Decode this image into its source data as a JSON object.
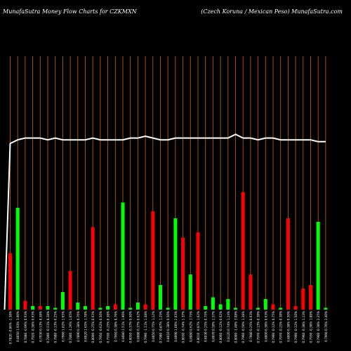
{
  "header": {
    "left": "MunafaSutra  Money Flow  Charts for CZKMXN",
    "right": "(Czech Koruna  / Mexican  Peso) MunafaSutra.com"
  },
  "colors": {
    "up": "#00ff00",
    "down": "#ff0000",
    "line": "#ffffff",
    "grid": "#b85a00",
    "background": "#000000"
  },
  "chart_data": {
    "type": "bar",
    "title": "",
    "xlabel": "",
    "ylabel": "",
    "ylim": [
      0,
      100
    ],
    "categories": [
      "0.7820 -0.86% -1.38%",
      "0.8050 1.93% 3.00%",
      "0.7880 -0.96% 0.63%",
      "0.7920 -0.38% 0.63%",
      "0.7930 0.13% 0.38%",
      "0.7890 -0.51% 0.38%",
      "0.7880 -0.13% 0.25%",
      "0.7960 1.02% 1.65%",
      "0.7860 -1.26% 1.65%",
      "0.7890 0.38% 0.76%",
      "0.8020 1.65% 1.78%",
      "0.8000 -0.25% 0.63%",
      "0.7950 -0.62% 0.50%",
      "0.7930 -0.25% 0.38%",
      "0.7960 0.38% 0.76%",
      "0.8080 1.51% 1.90%",
      "0.8050 -0.37% 0.50%",
      "0.8080 0.37% 0.62%",
      "0.7990 -1.11% 1.48%",
      "0.8050 0.75% 1.12%",
      "0.7980 -0.87% 1.25%",
      "0.8010 0.38% 0.50%",
      "0.8090 1.00% 2.63%",
      "0.8030 -0.74% 1.37%",
      "0.8080 0.62% 1.75%",
      "0.8010 -0.87% 1.62%",
      "0.8030 0.25% 0.75%",
      "0.8070 0.50% 1.37%",
      "0.8060 -0.12% 0.62%",
      "0.8120 0.74% 1.24%",
      "0.8000 -1.48% 3.08%",
      "0.7960 -0.50% 1.38%",
      "0.7980 0.25% 0.63%",
      "0.7970 -0.13% 0.38%",
      "0.8000 0.38% 0.63%",
      "0.7990 -0.12% 0.75%",
      "0.7970 -0.25% 0.38%",
      "0.8000 0.38% 0.50%",
      "0.7990 -0.12% 1.50%",
      "0.7960 -0.38% 1.13%",
      "0.7930 -0.38% 1.88%",
      "0.7900 -0.38% 2.25%",
      "0.7960 0.76% 2.40%"
    ],
    "series": [
      {
        "values": [
          32,
          58,
          5,
          2,
          2,
          2,
          1,
          10,
          22,
          4,
          2,
          47,
          1,
          2,
          3,
          61,
          1,
          4,
          3,
          56,
          14,
          1,
          52,
          41,
          20,
          44,
          2,
          7,
          3,
          6,
          1,
          67,
          20,
          1,
          6,
          3,
          1,
          52,
          2,
          12,
          14,
          50,
          1
        ],
        "directions": [
          "down",
          "up",
          "down",
          "up",
          "down",
          "up",
          "up",
          "up",
          "down",
          "up",
          "up",
          "down",
          "up",
          "up",
          "down",
          "up",
          "up",
          "up",
          "down",
          "down",
          "up",
          "up",
          "up",
          "down",
          "up",
          "down",
          "up",
          "up",
          "up",
          "up",
          "up",
          "down",
          "down",
          "up",
          "up",
          "down",
          "up",
          "down",
          "down",
          "down",
          "down",
          "up",
          "up"
        ]
      },
      {
        "values": [
          96,
          98,
          99,
          99,
          99,
          98,
          99,
          98,
          98,
          98,
          98,
          99,
          98,
          98,
          98,
          98,
          99,
          99,
          100,
          99,
          98,
          98,
          99,
          99,
          99,
          99,
          99,
          99,
          99,
          99,
          101,
          99,
          99,
          98,
          99,
          99,
          98,
          98,
          98,
          98,
          98,
          97,
          97
        ]
      }
    ]
  }
}
